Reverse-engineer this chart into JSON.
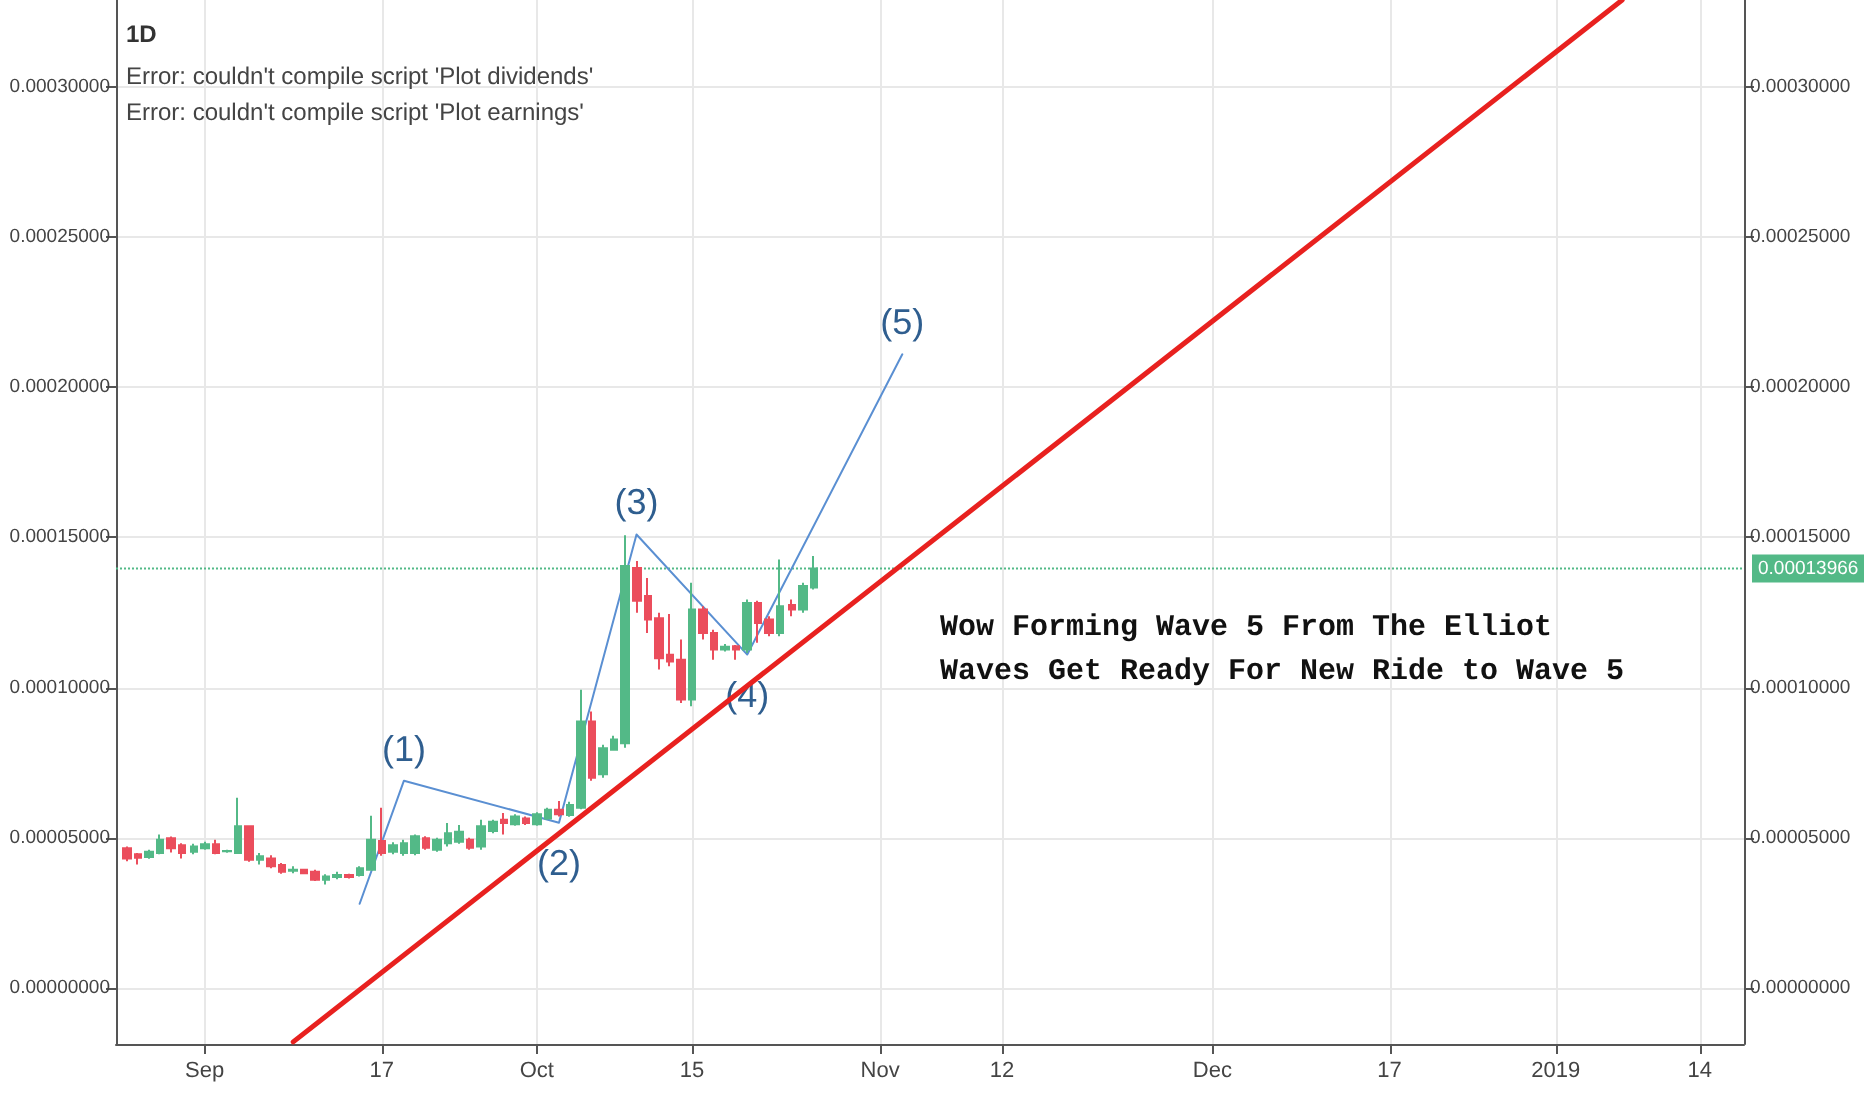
{
  "chart_data": {
    "type": "candlestick",
    "title": "1D",
    "subtitle": "Error: couldn't compile script 'Plot dividends'\nError: couldn't compile script 'Plot earnings'",
    "series": [
      {
        "type": "candlestick",
        "x": [
          "2018-08-25",
          "2018-08-26",
          "2018-08-27",
          "2018-08-28",
          "2018-08-29",
          "2018-08-30",
          "2018-08-31",
          "2018-09-01",
          "2018-09-02",
          "2018-09-03",
          "2018-09-04",
          "2018-09-05",
          "2018-09-06",
          "2018-09-07",
          "2018-09-08",
          "2018-09-09",
          "2018-09-10",
          "2018-09-11",
          "2018-09-12",
          "2018-09-13",
          "2018-09-14",
          "2018-09-15",
          "2018-09-16",
          "2018-09-17",
          "2018-09-18",
          "2018-09-19",
          "2018-09-20",
          "2018-09-21",
          "2018-09-22",
          "2018-09-23",
          "2018-09-24",
          "2018-09-25",
          "2018-09-26",
          "2018-09-27",
          "2018-09-28",
          "2018-09-29",
          "2018-09-30",
          "2018-10-01",
          "2018-10-02",
          "2018-10-03",
          "2018-10-04",
          "2018-10-05",
          "2018-10-06",
          "2018-10-07",
          "2018-10-08",
          "2018-10-09",
          "2018-10-10",
          "2018-10-11",
          "2018-10-12",
          "2018-10-13",
          "2018-10-14",
          "2018-10-15",
          "2018-10-16",
          "2018-10-17",
          "2018-10-18",
          "2018-10-19",
          "2018-10-20",
          "2018-10-21",
          "2018-10-22",
          "2018-10-23",
          "2018-10-24",
          "2018-10-25",
          "2018-10-26"
        ],
        "ohlc": [
          [
            4.65e-05,
            4.71e-05,
            4.22e-05,
            4.31e-05
          ],
          [
            4.45e-05,
            4.49e-05,
            4.11e-05,
            4.33e-05
          ],
          [
            4.36e-05,
            4.6e-05,
            4.3e-05,
            4.53e-05
          ],
          [
            4.49e-05,
            5.11e-05,
            4.45e-05,
            4.93e-05
          ],
          [
            4.98e-05,
            5.04e-05,
            4.51e-05,
            4.65e-05
          ],
          [
            4.75e-05,
            4.82e-05,
            4.31e-05,
            4.49e-05
          ],
          [
            4.53e-05,
            4.8e-05,
            4.45e-05,
            4.71e-05
          ],
          [
            4.65e-05,
            4.87e-05,
            4.6e-05,
            4.78e-05
          ],
          [
            4.78e-05,
            4.93e-05,
            4.45e-05,
            4.49e-05
          ],
          [
            4.55e-05,
            4.6e-05,
            4.5e-05,
            4.56e-05
          ],
          [
            4.49e-05,
            6.33e-05,
            4.49e-05,
            5.38e-05
          ],
          [
            5.38e-05,
            5.4e-05,
            4.2e-05,
            4.27e-05
          ],
          [
            4.27e-05,
            4.49e-05,
            4.11e-05,
            4.38e-05
          ],
          [
            4.31e-05,
            4.42e-05,
            3.98e-05,
            4.05e-05
          ],
          [
            4.09e-05,
            4.16e-05,
            3.8e-05,
            3.87e-05
          ],
          [
            3.9e-05,
            4.05e-05,
            3.82e-05,
            3.93e-05
          ],
          [
            3.93e-05,
            3.96e-05,
            3.8e-05,
            3.82e-05
          ],
          [
            3.87e-05,
            3.93e-05,
            3.56e-05,
            3.6e-05
          ],
          [
            3.6e-05,
            3.78e-05,
            3.44e-05,
            3.71e-05
          ],
          [
            3.69e-05,
            3.87e-05,
            3.62e-05,
            3.76e-05
          ],
          [
            3.76e-05,
            3.8e-05,
            3.64e-05,
            3.69e-05
          ],
          [
            3.76e-05,
            4.05e-05,
            3.71e-05,
            3.98e-05
          ],
          [
            3.93e-05,
            5.73e-05,
            3.93e-05,
            4.93e-05
          ],
          [
            4.89e-05,
            6e-05,
            4.4e-05,
            4.49e-05
          ],
          [
            4.53e-05,
            4.85e-05,
            4.45e-05,
            4.75e-05
          ],
          [
            4.49e-05,
            4.93e-05,
            4.4e-05,
            4.82e-05
          ],
          [
            4.49e-05,
            5.11e-05,
            4.42e-05,
            5.05e-05
          ],
          [
            4.98e-05,
            5.05e-05,
            4.6e-05,
            4.67e-05
          ],
          [
            4.6e-05,
            5e-05,
            4.53e-05,
            4.93e-05
          ],
          [
            4.82e-05,
            5.49e-05,
            4.71e-05,
            5.15e-05
          ],
          [
            4.87e-05,
            5.42e-05,
            4.8e-05,
            5.2e-05
          ],
          [
            4.93e-05,
            5e-05,
            4.6e-05,
            4.67e-05
          ],
          [
            4.71e-05,
            5.6e-05,
            4.6e-05,
            5.38e-05
          ],
          [
            5.22e-05,
            5.6e-05,
            5.15e-05,
            5.53e-05
          ],
          [
            5.6e-05,
            5.82e-05,
            5.11e-05,
            5.49e-05
          ],
          [
            5.45e-05,
            5.78e-05,
            5.4e-05,
            5.71e-05
          ],
          [
            5.64e-05,
            5.71e-05,
            5.42e-05,
            5.49e-05
          ],
          [
            5.45e-05,
            5.85e-05,
            5.4e-05,
            5.78e-05
          ],
          [
            5.64e-05,
            6e-05,
            5.6e-05,
            5.93e-05
          ],
          [
            5.93e-05,
            6.22e-05,
            5.71e-05,
            5.78e-05
          ],
          [
            5.76e-05,
            6.2e-05,
            5.7e-05,
            6.09e-05
          ],
          [
            6e-05,
            9.93e-05,
            5.95e-05,
            8.87e-05
          ],
          [
            8.87e-05,
            9.2e-05,
            6.9e-05,
            7e-05
          ],
          [
            7.11e-05,
            8.1e-05,
            7e-05,
            7.98e-05
          ],
          [
            7.93e-05,
            8.4e-05,
            7.9e-05,
            8.27e-05
          ],
          [
            8.15e-05,
            0.0001507,
            8e-05,
            0.0001405
          ],
          [
            0.0001398,
            0.0001422,
            0.0001249,
            0.0001289
          ],
          [
            0.0001305,
            0.0001365,
            0.0001182,
            0.0001227
          ],
          [
            0.0001231,
            0.0001249,
            0.000106,
            0.0001098
          ],
          [
            0.0001109,
            0.0001245,
            0.0001071,
            0.0001087
          ],
          [
            0.0001093,
            0.000116,
            9.49e-05,
            9.6e-05
          ],
          [
            9.6e-05,
            0.0001349,
            9.38e-05,
            0.000126
          ],
          [
            0.000126,
            0.0001271,
            0.000116,
            0.0001182
          ],
          [
            0.0001182,
            0.0001193,
            0.0001093,
            0.0001127
          ],
          [
            0.0001127,
            0.0001145,
            0.000112,
            0.0001136
          ],
          [
            0.0001138,
            0.0001142,
            0.0001093,
            0.0001127
          ],
          [
            0.0001127,
            0.0001293,
            0.0001115,
            0.0001282
          ],
          [
            0.0001282,
            0.0001289,
            0.0001149,
            0.0001215
          ],
          [
            0.0001227,
            0.0001238,
            0.0001171,
            0.0001182
          ],
          [
            0.0001182,
            0.0001427,
            0.0001171,
            0.0001271
          ],
          [
            0.0001275,
            0.0001293,
            0.0001238,
            0.000126
          ],
          [
            0.000126,
            0.0001349,
            0.0001249,
            0.0001338
          ],
          [
            0.0001333,
            0.0001438,
            0.0001327,
            0.00013966
          ]
        ],
        "colors": [
          "#eb4d5c",
          "#eb4d5c",
          "#53b987",
          "#53b987",
          "#eb4d5c",
          "#eb4d5c",
          "#53b987",
          "#53b987",
          "#eb4d5c",
          "#53b987",
          "#53b987",
          "#eb4d5c",
          "#53b987",
          "#eb4d5c",
          "#eb4d5c",
          "#53b987",
          "#eb4d5c",
          "#eb4d5c",
          "#53b987",
          "#53b987",
          "#eb4d5c",
          "#53b987",
          "#53b987",
          "#eb4d5c",
          "#53b987",
          "#53b987",
          "#53b987",
          "#eb4d5c",
          "#53b987",
          "#53b987",
          "#53b987",
          "#eb4d5c",
          "#53b987",
          "#53b987",
          "#eb4d5c",
          "#53b987",
          "#eb4d5c",
          "#53b987",
          "#53b987",
          "#eb4d5c",
          "#53b987",
          "#53b987",
          "#eb4d5c",
          "#53b987",
          "#53b987",
          "#53b987",
          "#eb4d5c",
          "#eb4d5c",
          "#eb4d5c",
          "#eb4d5c",
          "#eb4d5c",
          "#53b987",
          "#eb4d5c",
          "#eb4d5c",
          "#53b987",
          "#eb4d5c",
          "#53b987",
          "#eb4d5c",
          "#eb4d5c",
          "#53b987",
          "#eb4d5c",
          "#53b987",
          "#53b987"
        ]
      },
      {
        "type": "line",
        "color": "#5a8fd2",
        "x": [
          "2018-09-15",
          "2018-09-19",
          "2018-10-03",
          "2018-10-10",
          "2018-10-20",
          "2018-11-03"
        ],
        "values": [
          2.8e-05,
          6.9e-05,
          5.5e-05,
          0.000151,
          0.000111,
          0.000211
        ]
      },
      {
        "type": "line",
        "color": "#e8211f",
        "x": [
          "2018-09-09",
          "2019-01-07"
        ],
        "values": [
          -1.8e-05,
          0.000329
        ]
      }
    ],
    "xlim": [
      "2018-08-24",
      "2019-01-18"
    ],
    "xticks": [
      {
        "value": "2018-09-01",
        "label": "Sep"
      },
      {
        "value": "2018-09-17",
        "label": "17"
      },
      {
        "value": "2018-10-01",
        "label": "Oct"
      },
      {
        "value": "2018-10-15",
        "label": "15"
      },
      {
        "value": "2018-11-01",
        "label": "Nov"
      },
      {
        "value": "2018-11-12",
        "label": "12"
      },
      {
        "value": "2018-12-01",
        "label": "Dec"
      },
      {
        "value": "2018-12-17",
        "label": "17"
      },
      {
        "value": "2019-01-01",
        "label": "2019"
      },
      {
        "value": "2019-01-14",
        "label": "14"
      }
    ],
    "ylim": [
      -1.87e-05,
      0.000329
    ],
    "yticks": [
      {
        "value": 0,
        "label": "0.00000000"
      },
      {
        "value": 5e-05,
        "label": "0.00005000"
      },
      {
        "value": 0.0001,
        "label": "0.00010000"
      },
      {
        "value": 0.00015,
        "label": "0.00015000"
      },
      {
        "value": 0.0002,
        "label": "0.00020000"
      },
      {
        "value": 0.00025,
        "label": "0.00025000"
      },
      {
        "value": 0.0003,
        "label": "0.00030000"
      }
    ],
    "y2lim": [
      -1.87e-05,
      0.000329
    ],
    "y2ticks": [
      {
        "value": 0,
        "label": "0.00000000"
      },
      {
        "value": 5e-05,
        "label": "0.00005000"
      },
      {
        "value": 0.0001,
        "label": "0.00010000"
      },
      {
        "value": 0.00015,
        "label": "0.00015000"
      },
      {
        "value": 0.0002,
        "label": "0.00020000"
      },
      {
        "value": 0.00025,
        "label": "0.00025000"
      },
      {
        "value": 0.0003,
        "label": "0.00030000"
      }
    ],
    "ref_lines": [
      {
        "axis": "y",
        "value": 0.00013966,
        "label": "0.00013966",
        "color": "#53b987",
        "line_style": "dotted"
      }
    ],
    "annotations": [
      {
        "text": "(1)",
        "x": "2018-09-19",
        "y": 6.9e-05
      },
      {
        "text": "(2)",
        "x": "2018-10-03",
        "y": 5.5e-05
      },
      {
        "text": "(3)",
        "x": "2018-10-10",
        "y": 0.000151
      },
      {
        "text": "(4)",
        "x": "2018-10-20",
        "y": 0.000111
      },
      {
        "text": "(5)",
        "x": "2018-11-03",
        "y": 0.000211
      },
      "Wow Forming Wave 5 From The Elliot\nWaves Get Ready For New Ride to Wave 5"
    ],
    "grid": true,
    "marker": "none",
    "line_style": "solid"
  }
}
